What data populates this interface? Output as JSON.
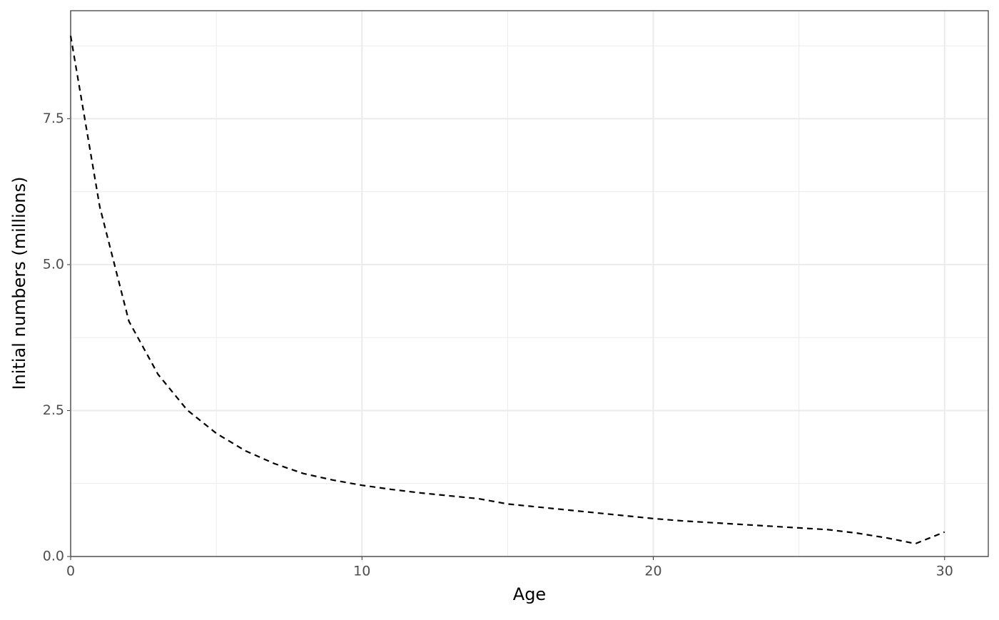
{
  "chart_data": {
    "type": "line",
    "x_label": "Age",
    "y_label": "Initial numbers (millions)",
    "x": [
      0,
      1,
      2,
      3,
      4,
      5,
      6,
      7,
      8,
      9,
      10,
      11,
      12,
      13,
      14,
      15,
      16,
      17,
      18,
      19,
      20,
      21,
      22,
      23,
      24,
      25,
      26,
      27,
      28,
      29,
      30
    ],
    "series": [
      {
        "color": "#000000",
        "dashed": true,
        "values": [
          8.92,
          5.99,
          4.03,
          3.12,
          2.51,
          2.11,
          1.81,
          1.59,
          1.42,
          1.31,
          1.22,
          1.15,
          1.09,
          1.04,
          0.99,
          0.9,
          0.85,
          0.8,
          0.75,
          0.7,
          0.65,
          0.61,
          0.58,
          0.55,
          0.52,
          0.49,
          0.46,
          0.4,
          0.32,
          0.22,
          0.42
        ]
      }
    ],
    "xlim": [
      0,
      31.5
    ],
    "ylim": [
      0,
      9.35
    ],
    "xticks": [
      0,
      10,
      20,
      30
    ],
    "yticks": [
      {
        "value": 0,
        "label": "0.0"
      },
      2.5,
      {
        "value": 5,
        "label": "5.0"
      },
      7.5
    ],
    "grid": true,
    "minor_grid": true
  }
}
